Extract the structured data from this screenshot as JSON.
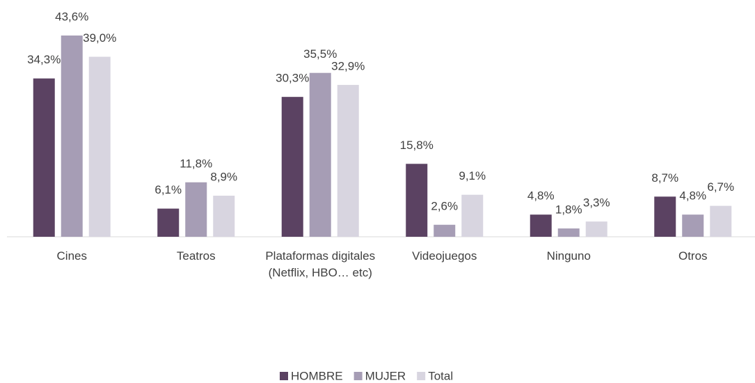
{
  "chart_data": {
    "type": "bar",
    "categories": [
      "Cines",
      "Teatros",
      "Plataformas digitales (Netflix, HBO… etc)",
      "Videojuegos",
      "Ninguno",
      "Otros"
    ],
    "series": [
      {
        "name": "HOMBRE",
        "color": "#5b4262",
        "values": [
          34.3,
          6.1,
          30.3,
          15.8,
          4.8,
          8.7
        ],
        "value_labels": [
          "34,3%",
          "6,1%",
          "30,3%",
          "15,8%",
          "4,8%",
          "8,7%"
        ]
      },
      {
        "name": "MUJER",
        "color": "#a69db5",
        "values": [
          43.6,
          11.8,
          35.5,
          2.6,
          1.8,
          4.8
        ],
        "value_labels": [
          "43,6%",
          "11,8%",
          "35,5%",
          "2,6%",
          "1,8%",
          "4,8%"
        ]
      },
      {
        "name": "Total",
        "color": "#d8d5e0",
        "values": [
          39.0,
          8.9,
          32.9,
          9.1,
          3.3,
          6.7
        ],
        "value_labels": [
          "39,0%",
          "8,9%",
          "32,9%",
          "9,1%",
          "3,3%",
          "6,7%"
        ]
      }
    ],
    "legend": "bottom"
  }
}
